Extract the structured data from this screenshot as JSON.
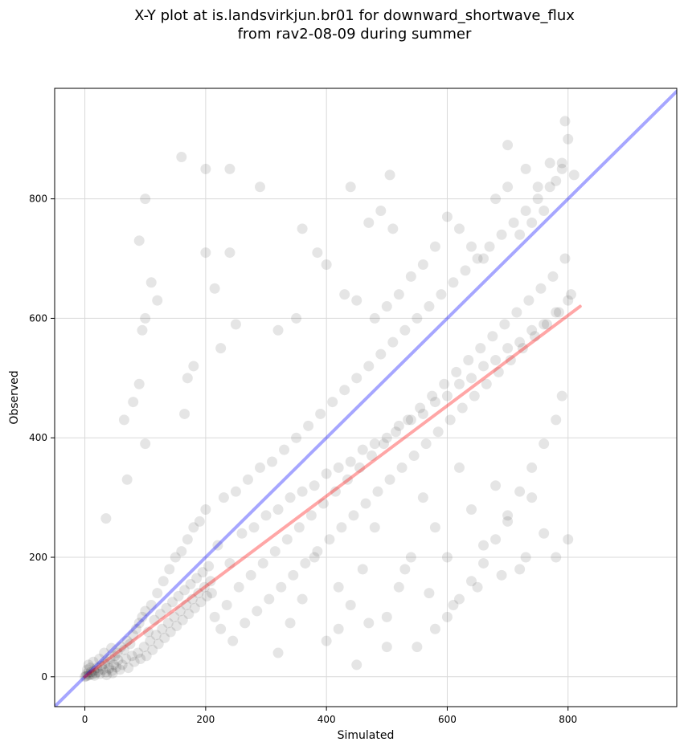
{
  "chart_data": {
    "type": "scatter",
    "title_lines": [
      "X-Y plot at is.landsvirkjun.br01 for downward_shortwave_flux",
      "from rav2-08-09 during summer"
    ],
    "xlabel": "Simulated",
    "ylabel": "Observed",
    "xlim": [
      -50,
      980
    ],
    "ylim": [
      -50,
      985
    ],
    "xticks": [
      0,
      200,
      400,
      600,
      800
    ],
    "yticks": [
      0,
      200,
      400,
      600,
      800
    ],
    "grid": true,
    "point_color": "#000000",
    "point_alpha": 0.1,
    "reference_line": {
      "label": "",
      "color": "#0000ff",
      "x": [
        -50,
        980
      ],
      "y": [
        -50,
        980
      ]
    },
    "fit_line": {
      "label": "",
      "color": "#ff0000",
      "x": [
        0,
        820
      ],
      "y": [
        0,
        620
      ]
    },
    "points": [
      [
        0,
        0
      ],
      [
        2,
        1
      ],
      [
        3,
        5
      ],
      [
        5,
        2
      ],
      [
        8,
        3
      ],
      [
        10,
        8
      ],
      [
        12,
        4
      ],
      [
        15,
        10
      ],
      [
        18,
        6
      ],
      [
        20,
        15
      ],
      [
        22,
        9
      ],
      [
        25,
        5
      ],
      [
        28,
        18
      ],
      [
        30,
        12
      ],
      [
        33,
        22
      ],
      [
        35,
        8
      ],
      [
        38,
        25
      ],
      [
        40,
        14
      ],
      [
        42,
        30
      ],
      [
        45,
        10
      ],
      [
        48,
        20
      ],
      [
        50,
        35
      ],
      [
        52,
        16
      ],
      [
        55,
        28
      ],
      [
        4,
        12
      ],
      [
        6,
        20
      ],
      [
        9,
        15
      ],
      [
        14,
        25
      ],
      [
        16,
        2
      ],
      [
        24,
        30
      ],
      [
        32,
        40
      ],
      [
        36,
        3
      ],
      [
        44,
        48
      ],
      [
        46,
        6
      ],
      [
        54,
        40
      ],
      [
        58,
        12
      ],
      [
        60,
        50
      ],
      [
        62,
        20
      ],
      [
        65,
        45
      ],
      [
        68,
        30
      ],
      [
        70,
        60
      ],
      [
        72,
        15
      ],
      [
        75,
        55
      ],
      [
        78,
        35
      ],
      [
        80,
        70
      ],
      [
        82,
        25
      ],
      [
        85,
        80
      ],
      [
        88,
        40
      ],
      [
        90,
        90
      ],
      [
        92,
        30
      ],
      [
        95,
        100
      ],
      [
        98,
        50
      ],
      [
        100,
        110
      ],
      [
        102,
        35
      ],
      [
        105,
        75
      ],
      [
        108,
        60
      ],
      [
        110,
        120
      ],
      [
        112,
        45
      ],
      [
        115,
        95
      ],
      [
        118,
        70
      ],
      [
        120,
        140
      ],
      [
        122,
        55
      ],
      [
        125,
        105
      ],
      [
        128,
        80
      ],
      [
        130,
        160
      ],
      [
        132,
        65
      ],
      [
        135,
        115
      ],
      [
        138,
        90
      ],
      [
        140,
        180
      ],
      [
        142,
        75
      ],
      [
        145,
        125
      ],
      [
        148,
        100
      ],
      [
        150,
        200
      ],
      [
        152,
        85
      ],
      [
        155,
        135
      ],
      [
        158,
        110
      ],
      [
        160,
        210
      ],
      [
        162,
        95
      ],
      [
        165,
        145
      ],
      [
        168,
        120
      ],
      [
        170,
        230
      ],
      [
        172,
        105
      ],
      [
        175,
        155
      ],
      [
        178,
        130
      ],
      [
        180,
        250
      ],
      [
        182,
        115
      ],
      [
        185,
        165
      ],
      [
        188,
        140
      ],
      [
        190,
        260
      ],
      [
        192,
        125
      ],
      [
        195,
        175
      ],
      [
        198,
        150
      ],
      [
        200,
        280
      ],
      [
        202,
        135
      ],
      [
        205,
        185
      ],
      [
        208,
        160
      ],
      [
        210,
        140
      ],
      [
        215,
        100
      ],
      [
        220,
        220
      ],
      [
        225,
        80
      ],
      [
        230,
        300
      ],
      [
        235,
        120
      ],
      [
        240,
        190
      ],
      [
        245,
        60
      ],
      [
        250,
        310
      ],
      [
        255,
        150
      ],
      [
        260,
        240
      ],
      [
        265,
        90
      ],
      [
        270,
        330
      ],
      [
        275,
        170
      ],
      [
        280,
        250
      ],
      [
        285,
        110
      ],
      [
        290,
        350
      ],
      [
        295,
        190
      ],
      [
        300,
        270
      ],
      [
        305,
        130
      ],
      [
        310,
        360
      ],
      [
        315,
        210
      ],
      [
        320,
        280
      ],
      [
        325,
        150
      ],
      [
        330,
        380
      ],
      [
        335,
        230
      ],
      [
        340,
        300
      ],
      [
        345,
        170
      ],
      [
        350,
        400
      ],
      [
        355,
        250
      ],
      [
        360,
        310
      ],
      [
        365,
        190
      ],
      [
        370,
        420
      ],
      [
        375,
        270
      ],
      [
        380,
        320
      ],
      [
        385,
        210
      ],
      [
        390,
        440
      ],
      [
        395,
        290
      ],
      [
        400,
        340
      ],
      [
        405,
        230
      ],
      [
        410,
        460
      ],
      [
        415,
        310
      ],
      [
        420,
        350
      ],
      [
        425,
        250
      ],
      [
        430,
        480
      ],
      [
        435,
        330
      ],
      [
        440,
        360
      ],
      [
        445,
        270
      ],
      [
        450,
        500
      ],
      [
        455,
        350
      ],
      [
        460,
        380
      ],
      [
        465,
        290
      ],
      [
        470,
        520
      ],
      [
        475,
        370
      ],
      [
        480,
        390
      ],
      [
        485,
        310
      ],
      [
        490,
        540
      ],
      [
        495,
        390
      ],
      [
        500,
        400
      ],
      [
        505,
        330
      ],
      [
        510,
        560
      ],
      [
        515,
        410
      ],
      [
        520,
        420
      ],
      [
        525,
        350
      ],
      [
        530,
        580
      ],
      [
        535,
        430
      ],
      [
        540,
        430
      ],
      [
        545,
        370
      ],
      [
        550,
        600
      ],
      [
        555,
        450
      ],
      [
        560,
        440
      ],
      [
        565,
        390
      ],
      [
        570,
        620
      ],
      [
        575,
        470
      ],
      [
        580,
        460
      ],
      [
        585,
        410
      ],
      [
        590,
        640
      ],
      [
        595,
        490
      ],
      [
        600,
        470
      ],
      [
        605,
        430
      ],
      [
        610,
        660
      ],
      [
        615,
        510
      ],
      [
        620,
        490
      ],
      [
        625,
        450
      ],
      [
        630,
        680
      ],
      [
        635,
        530
      ],
      [
        640,
        500
      ],
      [
        645,
        470
      ],
      [
        650,
        700
      ],
      [
        655,
        550
      ],
      [
        660,
        520
      ],
      [
        665,
        490
      ],
      [
        670,
        720
      ],
      [
        675,
        570
      ],
      [
        680,
        530
      ],
      [
        685,
        510
      ],
      [
        690,
        740
      ],
      [
        695,
        590
      ],
      [
        700,
        550
      ],
      [
        705,
        530
      ],
      [
        710,
        760
      ],
      [
        715,
        610
      ],
      [
        720,
        560
      ],
      [
        725,
        550
      ],
      [
        730,
        780
      ],
      [
        735,
        630
      ],
      [
        740,
        580
      ],
      [
        745,
        570
      ],
      [
        750,
        800
      ],
      [
        755,
        650
      ],
      [
        760,
        590
      ],
      [
        765,
        590
      ],
      [
        770,
        820
      ],
      [
        775,
        670
      ],
      [
        780,
        610
      ],
      [
        785,
        610
      ],
      [
        790,
        850
      ],
      [
        795,
        700
      ],
      [
        800,
        630
      ],
      [
        805,
        640
      ],
      [
        560,
        300
      ],
      [
        580,
        250
      ],
      [
        600,
        200
      ],
      [
        620,
        350
      ],
      [
        640,
        280
      ],
      [
        660,
        220
      ],
      [
        680,
        320
      ],
      [
        700,
        260
      ],
      [
        720,
        180
      ],
      [
        740,
        300
      ],
      [
        760,
        240
      ],
      [
        780,
        200
      ],
      [
        540,
        200
      ],
      [
        520,
        150
      ],
      [
        500,
        100
      ],
      [
        480,
        250
      ],
      [
        460,
        180
      ],
      [
        440,
        120
      ],
      [
        420,
        80
      ],
      [
        400,
        60
      ],
      [
        380,
        200
      ],
      [
        360,
        130
      ],
      [
        340,
        90
      ],
      [
        320,
        40
      ],
      [
        600,
        100
      ],
      [
        620,
        130
      ],
      [
        640,
        160
      ],
      [
        660,
        190
      ],
      [
        680,
        230
      ],
      [
        700,
        270
      ],
      [
        720,
        310
      ],
      [
        740,
        350
      ],
      [
        760,
        390
      ],
      [
        780,
        430
      ],
      [
        790,
        470
      ],
      [
        800,
        230
      ],
      [
        550,
        50
      ],
      [
        580,
        80
      ],
      [
        500,
        50
      ],
      [
        450,
        20
      ],
      [
        420,
        150
      ],
      [
        470,
        90
      ],
      [
        530,
        180
      ],
      [
        570,
        140
      ],
      [
        610,
        120
      ],
      [
        650,
        150
      ],
      [
        690,
        170
      ],
      [
        730,
        200
      ],
      [
        100,
        800
      ],
      [
        200,
        850
      ],
      [
        240,
        850
      ],
      [
        290,
        820
      ],
      [
        160,
        870
      ],
      [
        90,
        730
      ],
      [
        110,
        660
      ],
      [
        120,
        630
      ],
      [
        100,
        600
      ],
      [
        95,
        580
      ],
      [
        200,
        710
      ],
      [
        240,
        710
      ],
      [
        215,
        650
      ],
      [
        250,
        590
      ],
      [
        225,
        550
      ],
      [
        180,
        520
      ],
      [
        170,
        500
      ],
      [
        165,
        440
      ],
      [
        100,
        390
      ],
      [
        65,
        430
      ],
      [
        80,
        460
      ],
      [
        90,
        490
      ],
      [
        70,
        330
      ],
      [
        35,
        265
      ],
      [
        360,
        750
      ],
      [
        385,
        710
      ],
      [
        400,
        690
      ],
      [
        430,
        640
      ],
      [
        450,
        630
      ],
      [
        440,
        820
      ],
      [
        505,
        840
      ],
      [
        490,
        780
      ],
      [
        510,
        750
      ],
      [
        470,
        760
      ],
      [
        320,
        580
      ],
      [
        350,
        600
      ],
      [
        700,
        890
      ],
      [
        730,
        850
      ],
      [
        750,
        820
      ],
      [
        770,
        860
      ],
      [
        790,
        860
      ],
      [
        800,
        900
      ],
      [
        795,
        930
      ],
      [
        780,
        830
      ],
      [
        760,
        780
      ],
      [
        740,
        760
      ],
      [
        720,
        740
      ],
      [
        810,
        840
      ],
      [
        600,
        770
      ],
      [
        620,
        750
      ],
      [
        640,
        720
      ],
      [
        680,
        800
      ],
      [
        700,
        820
      ],
      [
        660,
        700
      ],
      [
        580,
        720
      ],
      [
        560,
        690
      ],
      [
        540,
        670
      ],
      [
        520,
        640
      ],
      [
        500,
        620
      ],
      [
        480,
        600
      ]
    ]
  }
}
